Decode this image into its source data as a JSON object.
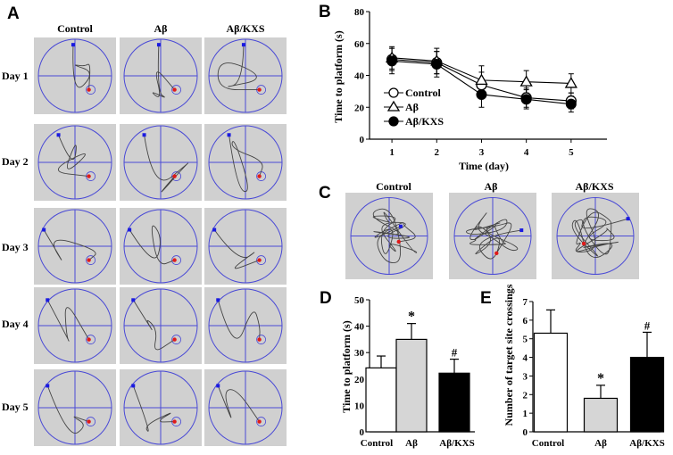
{
  "figure": {
    "panel_letters": [
      "A",
      "B",
      "C",
      "D",
      "E"
    ],
    "groups": [
      "Control",
      "Aβ",
      "Aβ/KXS"
    ],
    "days": [
      "Day 1",
      "Day 2",
      "Day 3",
      "Day 4",
      "Day 5"
    ],
    "colors": {
      "tank_bg": "#d0d0d0",
      "pool_line": "#4a4ad6",
      "start_marker": "#1a1ae0",
      "platform_marker": "#e01a1a",
      "path": "#444444",
      "ab_bar": "#d6d6d6",
      "kxs_bar": "#000000"
    }
  },
  "chart_data": [
    {
      "id": "B",
      "type": "line",
      "title": "",
      "xlabel": "Time (day)",
      "ylabel": "Time to platform (s)",
      "x": [
        1,
        2,
        3,
        4,
        5
      ],
      "xlim": [
        0.5,
        5.8
      ],
      "ylim": [
        0,
        80
      ],
      "yticks": [
        0,
        20,
        40,
        60,
        80
      ],
      "legend_position": "bottom-left",
      "series": [
        {
          "name": "Control",
          "marker": "circle-open",
          "values": [
            50,
            48,
            34,
            26,
            24
          ],
          "err": [
            7,
            7,
            8,
            6,
            5
          ]
        },
        {
          "name": "Aβ",
          "marker": "triangle-open",
          "values": [
            51,
            49,
            37,
            36,
            35
          ],
          "err": [
            7,
            8,
            9,
            7,
            6
          ]
        },
        {
          "name": "Aβ/KXS",
          "marker": "circle-filled",
          "values": [
            49,
            47,
            28,
            25,
            22
          ],
          "err": [
            8,
            8,
            8,
            6,
            5
          ]
        }
      ]
    },
    {
      "id": "D",
      "type": "bar",
      "title": "",
      "xlabel": "",
      "ylabel": "Time to platform (s)",
      "categories": [
        "Control",
        "Aβ",
        "Aβ/KXS"
      ],
      "values": [
        24.2,
        35,
        22.2
      ],
      "err": [
        4.5,
        6,
        5.3
      ],
      "annotations": [
        "",
        "*",
        "#"
      ],
      "ylim": [
        0,
        50
      ],
      "yticks": [
        0,
        10,
        20,
        30,
        40,
        50
      ]
    },
    {
      "id": "E",
      "type": "bar",
      "title": "",
      "xlabel": "",
      "ylabel": "Number of target site crossings",
      "categories": [
        "Control",
        "Aβ",
        "Aβ/KXS"
      ],
      "values": [
        5.3,
        1.8,
        4
      ],
      "err": [
        1.25,
        0.7,
        1.35
      ],
      "annotations": [
        "",
        "*",
        "#"
      ],
      "ylim": [
        0,
        7
      ],
      "yticks": [
        0,
        1,
        2,
        3,
        4,
        5,
        6,
        7
      ]
    }
  ]
}
